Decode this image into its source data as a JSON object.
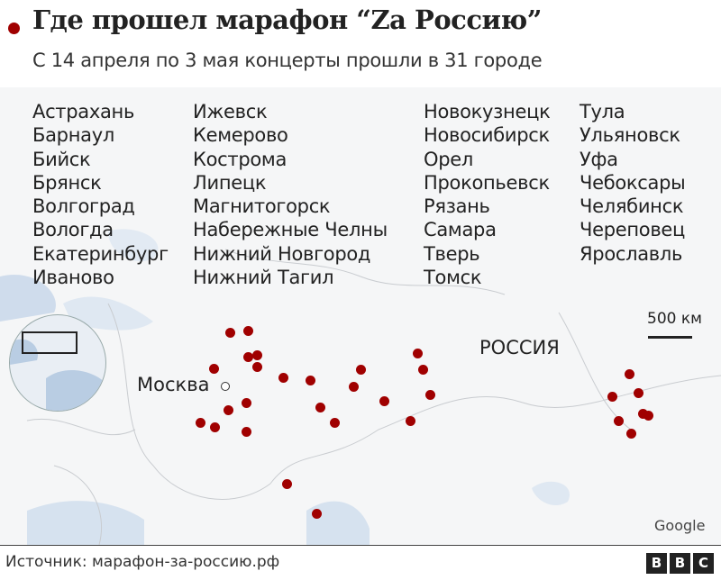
{
  "header": {
    "title": "Где прошел марафон “Za Россию”",
    "subtitle": "С 14 апреля по 3 мая концерты прошли в 31 городе"
  },
  "cities": {
    "col1": [
      "Астрахань",
      "Барнаул",
      "Бийск",
      "Брянск",
      "Волгоград",
      "Вологда",
      "Екатеринбург",
      "Иваново"
    ],
    "col2": [
      "Ижевск",
      "Кемерово",
      "Кострома",
      "Липецк",
      "Магнитогорск",
      "Набережные Челны",
      "Нижний Новгород",
      "Нижний Тагил"
    ],
    "col3": [
      "Новокузнецк",
      "Новосибирск",
      "Орел",
      "Прокопьевск",
      "Рязань",
      "Самара",
      "Тверь",
      "Томск"
    ],
    "col4": [
      "Тула",
      "Ульяновск",
      "Уфа",
      "Чебоксары",
      "Челябинск",
      "Череповец",
      "Ярославль"
    ]
  },
  "map": {
    "capital_label": "Москва",
    "country_label": "РОССИЯ",
    "scale_label": "500 км",
    "attribution": "Google",
    "marker_count": 31,
    "marker_color": "#a00000",
    "water_color": "#cfdcec",
    "land_color": "#f5f6f7"
  },
  "footer": {
    "source": "Источник: марафон-за-россию.рф",
    "logo": [
      "B",
      "B",
      "C"
    ]
  }
}
